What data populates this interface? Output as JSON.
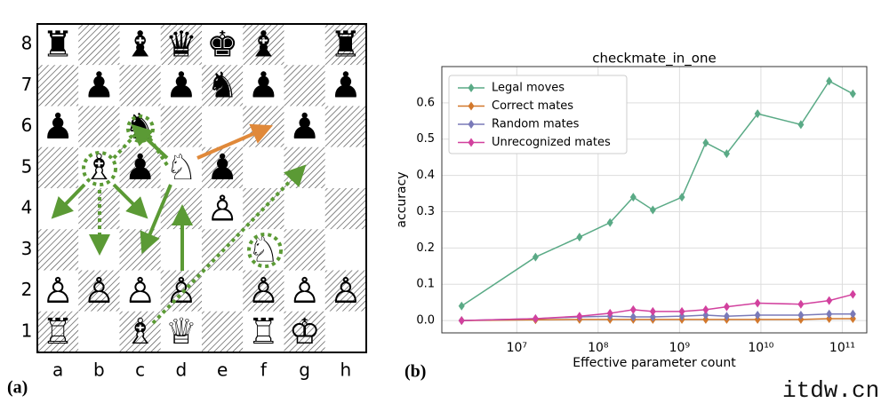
{
  "diagram": {
    "label": "(a)",
    "rank_labels": [
      "8",
      "7",
      "6",
      "5",
      "4",
      "3",
      "2",
      "1"
    ],
    "file_labels": [
      "a",
      "b",
      "c",
      "d",
      "e",
      "f",
      "g",
      "h"
    ],
    "board": [
      [
        "♜",
        null,
        "♝",
        "♛",
        "♚",
        "♝",
        null,
        "♜"
      ],
      [
        null,
        "♟",
        null,
        "♟",
        "♞",
        "♟",
        null,
        "♟"
      ],
      [
        "♟",
        null,
        "♞",
        null,
        null,
        null,
        "♟",
        null
      ],
      [
        null,
        "♗",
        "♟",
        "♘",
        "♟",
        null,
        null,
        null
      ],
      [
        null,
        null,
        null,
        null,
        "♙",
        null,
        null,
        null
      ],
      [
        null,
        null,
        null,
        null,
        null,
        "♘",
        null,
        null
      ],
      [
        "♙",
        "♙",
        "♙",
        "♙",
        null,
        "♙",
        "♙",
        "♙"
      ],
      [
        "♖",
        null,
        "♗",
        "♕",
        null,
        "♖",
        "♔",
        null
      ]
    ]
  },
  "chart_data": {
    "type": "line",
    "label": "(b)",
    "title": "checkmate_in_one",
    "x_label": "Effective parameter count",
    "y_label": "accuracy",
    "x": [
      2100000,
      17000000,
      59000000,
      140000000,
      270000000,
      470000000,
      1070000000,
      2100000000,
      3800000000,
      9100000000,
      31000000000,
      69000000000,
      135000000000
    ],
    "series": [
      {
        "name": "Legal moves",
        "color": "#5aaa86",
        "values": [
          0.04,
          0.175,
          0.23,
          0.27,
          0.34,
          0.305,
          0.34,
          0.49,
          0.46,
          0.57,
          0.54,
          0.66,
          0.625
        ]
      },
      {
        "name": "Correct mates",
        "color": "#d2782c",
        "values": [
          0.0,
          0.002,
          0.003,
          0.003,
          0.003,
          0.003,
          0.003,
          0.003,
          0.003,
          0.003,
          0.003,
          0.005,
          0.005
        ]
      },
      {
        "name": "Random mates",
        "color": "#7a7ab8",
        "values": [
          0.0,
          0.005,
          0.01,
          0.012,
          0.01,
          0.01,
          0.012,
          0.015,
          0.012,
          0.015,
          0.015,
          0.018,
          0.018
        ]
      },
      {
        "name": "Unrecognized mates",
        "color": "#d2419e",
        "values": [
          0.0,
          0.005,
          0.012,
          0.02,
          0.03,
          0.025,
          0.025,
          0.03,
          0.038,
          0.048,
          0.045,
          0.055,
          0.072
        ]
      }
    ],
    "xscale": "log",
    "xlim": [
      1200000,
      200000000000
    ],
    "xticks": [
      {
        "value": 10000000,
        "label": "10⁷"
      },
      {
        "value": 100000000,
        "label": "10⁸"
      },
      {
        "value": 1000000000,
        "label": "10⁹"
      },
      {
        "value": 10000000000,
        "label": "10¹⁰"
      },
      {
        "value": 100000000000,
        "label": "10¹¹"
      }
    ],
    "ylim": [
      -0.034,
      0.7
    ],
    "yticks": [
      {
        "value": 0,
        "label": "0.0"
      },
      0.1,
      0.2,
      0.3,
      0.4,
      0.5,
      0.6
    ],
    "grid": true,
    "legend": "upper left",
    "marker": "diamond"
  },
  "watermark": "itdw.cn"
}
